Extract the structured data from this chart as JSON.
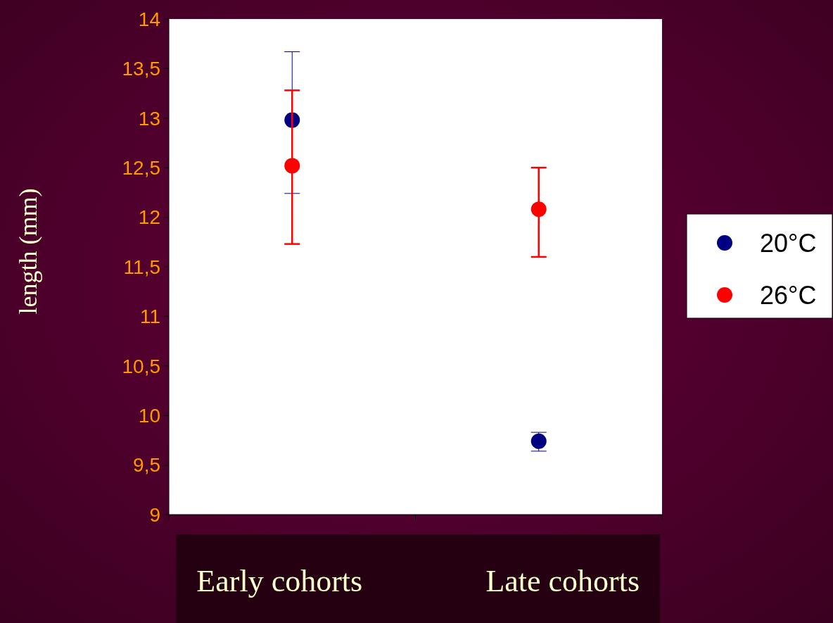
{
  "chart_data": {
    "type": "scatter",
    "ylabel": "length (mm)",
    "categories": [
      "Early cohorts",
      "Late cohorts"
    ],
    "series": [
      {
        "name": "20°C",
        "color": "#000080",
        "values": [
          12.98,
          9.74
        ],
        "errors": [
          [
            12.24,
            13.67
          ],
          [
            9.64,
            9.83
          ]
        ]
      },
      {
        "name": "26°C",
        "color": "#ff0000",
        "values": [
          12.52,
          12.08
        ],
        "errors": [
          [
            11.73,
            13.28
          ],
          [
            11.6,
            12.5
          ]
        ]
      }
    ],
    "ylim": [
      9,
      14
    ],
    "yticks": [
      9,
      {
        "value": 9.5,
        "label": "9,5"
      },
      10,
      {
        "value": 10.5,
        "label": "10,5"
      },
      11,
      {
        "value": 11.5,
        "label": "11,5"
      },
      12,
      {
        "value": 12.5,
        "label": "12,5"
      },
      13,
      {
        "value": 13.5,
        "label": "13,5"
      },
      14
    ],
    "grid": false,
    "legend": "right",
    "marker": "circle"
  }
}
